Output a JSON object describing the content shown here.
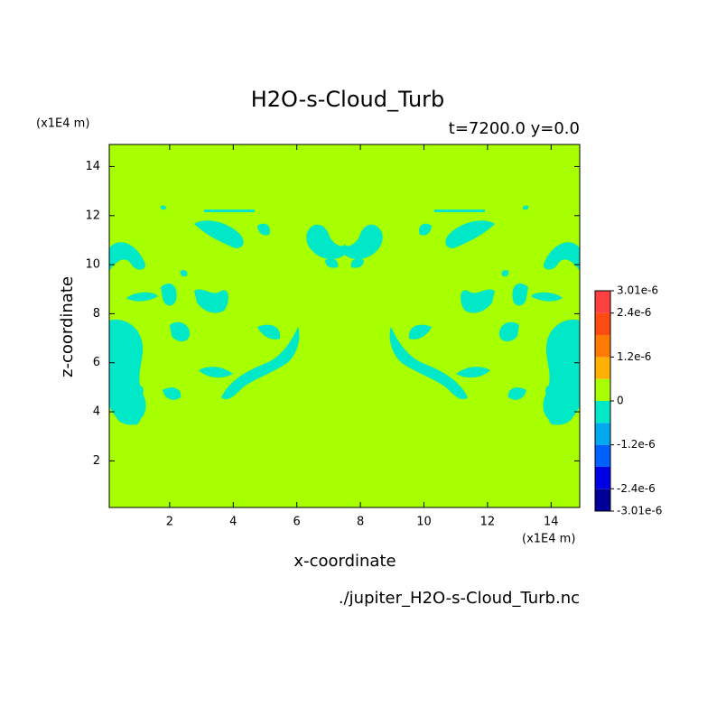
{
  "chart_data": {
    "type": "contour",
    "title": "H2O-s-Cloud_Turb",
    "subtitle": "t=7200.0 y=0.0",
    "x_unit": "(x1E4 m)",
    "y_unit": "(x1E4 m)",
    "xlabel": "x-coordinate",
    "ylabel": "z-coordinate",
    "source": "./jupiter_H2O-s-Cloud_Turb.nc",
    "xlim": [
      0.1,
      14.9
    ],
    "xticks": [
      2,
      4,
      6,
      8,
      10,
      12,
      14
    ],
    "ylim": [
      0.1,
      14.9
    ],
    "yticks": [
      2,
      4,
      6,
      8,
      10,
      12,
      14
    ],
    "colorbar": {
      "levels": [
        -3.01e-06,
        -2.4e-06,
        -1.8e-06,
        -1.2e-06,
        -6e-07,
        0,
        6e-07,
        1.2e-06,
        1.8e-06,
        2.4e-06,
        3.01e-06
      ],
      "colors": [
        "#000099",
        "#0000e6",
        "#0060ff",
        "#00a8f0",
        "#00e8c8",
        "#a8ff00",
        "#ffb000",
        "#ff7a00",
        "#ff4a10",
        "#ff4040"
      ],
      "ticks": [
        {
          "value": 3.01e-06,
          "label": "3.01e-6"
        },
        {
          "value": 2.4e-06,
          "label": "2.4e-6"
        },
        {
          "value": 1.2e-06,
          "label": "1.2e-6"
        },
        0,
        {
          "value": -1.2e-06,
          "label": "-1.2e-6"
        },
        {
          "value": -2.4e-06,
          "label": "-2.4e-6"
        },
        {
          "value": -3.01e-06,
          "label": "-3.01e-6"
        }
      ]
    }
  }
}
